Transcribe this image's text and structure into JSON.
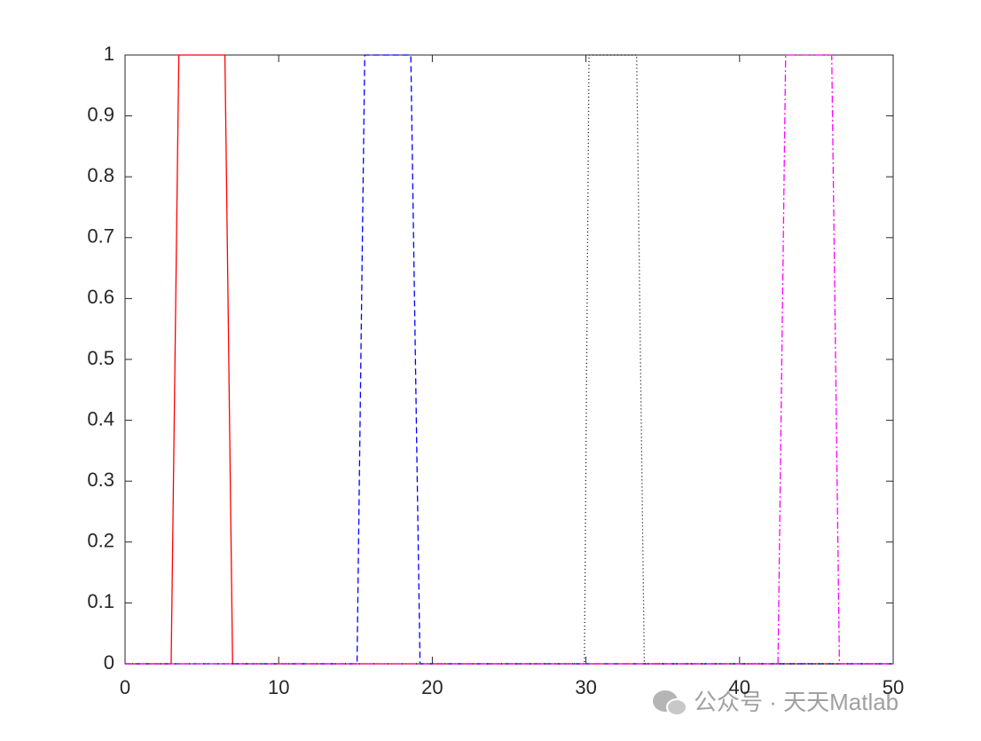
{
  "chart_data": {
    "type": "line",
    "xlim": [
      0,
      50
    ],
    "xticks": [
      0,
      10,
      20,
      30,
      40,
      50
    ],
    "ylim": [
      0,
      1
    ],
    "yticks": [
      0,
      0.1,
      0.2,
      0.3,
      0.4,
      0.5,
      0.6,
      0.7,
      0.8,
      0.9,
      1
    ],
    "series": [
      {
        "color": "#ff0000",
        "linestyle": "solid",
        "x": [
          0,
          3,
          3.5,
          6.5,
          7,
          50
        ],
        "values": [
          0,
          0,
          1,
          1,
          0,
          0
        ]
      },
      {
        "color": "#0000ff",
        "linestyle": "dashed",
        "x": [
          0,
          15.1,
          15.6,
          18.6,
          19.2,
          50
        ],
        "values": [
          0,
          0,
          1,
          1,
          0,
          0
        ]
      },
      {
        "color": "#000000",
        "linestyle": "dotted",
        "x": [
          0,
          29.9,
          30.2,
          33.3,
          33.8,
          50
        ],
        "values": [
          0,
          0,
          1,
          1,
          0,
          0
        ]
      },
      {
        "color": "#ff00ff",
        "linestyle": "dashdot",
        "x": [
          0,
          42.5,
          43,
          46,
          46.5,
          50
        ],
        "values": [
          0,
          0,
          1,
          1,
          0,
          0
        ]
      }
    ],
    "watermark": "公众号 · 天天Matlab"
  }
}
